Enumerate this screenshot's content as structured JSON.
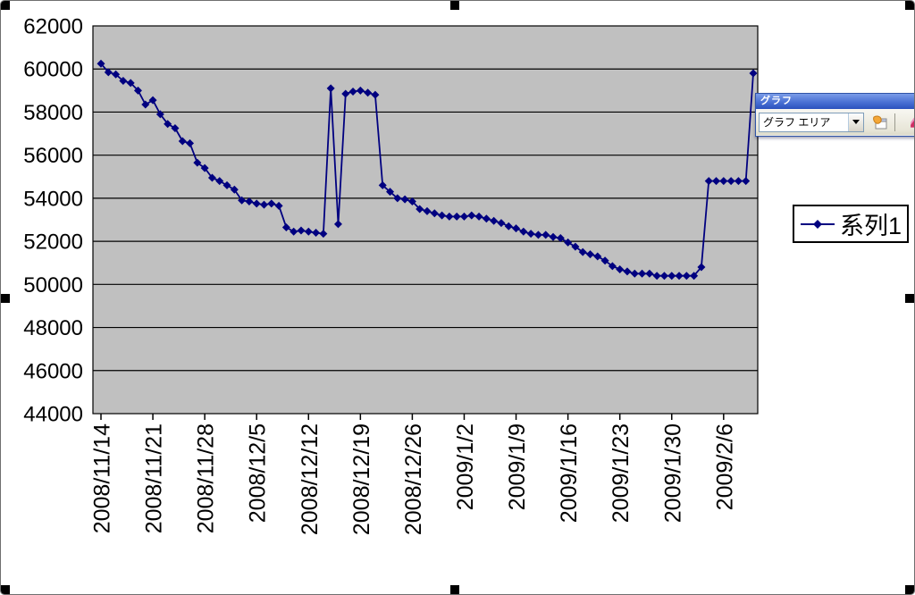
{
  "chart_data": {
    "type": "line",
    "title": "",
    "series": [
      {
        "name": "系列1",
        "values": [
          60250,
          59850,
          59750,
          59450,
          59350,
          59000,
          58350,
          58550,
          57900,
          57450,
          57250,
          56650,
          56550,
          55650,
          55400,
          54950,
          54800,
          54600,
          54400,
          53900,
          53850,
          53750,
          53700,
          53750,
          53650,
          52650,
          52450,
          52500,
          52450,
          52400,
          52350,
          59100,
          52800,
          58850,
          58950,
          59000,
          58900,
          58800,
          54600,
          54300,
          54000,
          53950,
          53850,
          53500,
          53400,
          53300,
          53200,
          53150,
          53150,
          53150,
          53200,
          53150,
          53050,
          52950,
          52850,
          52700,
          52600,
          52450,
          52350,
          52300,
          52300,
          52200,
          52150,
          51950,
          51750,
          51500,
          51400,
          51300,
          51100,
          50850,
          50700,
          50600,
          50500,
          50500,
          50500,
          50400,
          50400,
          50400,
          50400,
          50400,
          50400,
          50800,
          54800,
          54800,
          54800,
          54800,
          54800,
          54800,
          59800
        ]
      }
    ],
    "x_labels": [
      "2008/11/14",
      "2008/11/21",
      "2008/11/28",
      "2008/12/5",
      "2008/12/12",
      "2008/12/19",
      "2008/12/26",
      "2009/1/2",
      "2009/1/9",
      "2009/1/16",
      "2009/1/23",
      "2009/1/30",
      "2009/2/6"
    ],
    "label_interval": 7,
    "y_ticks": [
      62000,
      60000,
      58000,
      56000,
      54000,
      52000,
      50000,
      48000,
      46000,
      44000
    ],
    "ylim": [
      44000,
      62000
    ],
    "grid": true,
    "legend_position": "right",
    "line_color": "#000080",
    "plot_bg": "#c0c0c0",
    "gridline_color": "#000000"
  },
  "legend": {
    "series_label": "系列1"
  },
  "toolbar": {
    "title": "グラフ",
    "selector_value": "グラフ エリア",
    "icons": [
      "dropdown-arrow-icon",
      "format-dialog-icon",
      "chart-type-icon"
    ]
  }
}
